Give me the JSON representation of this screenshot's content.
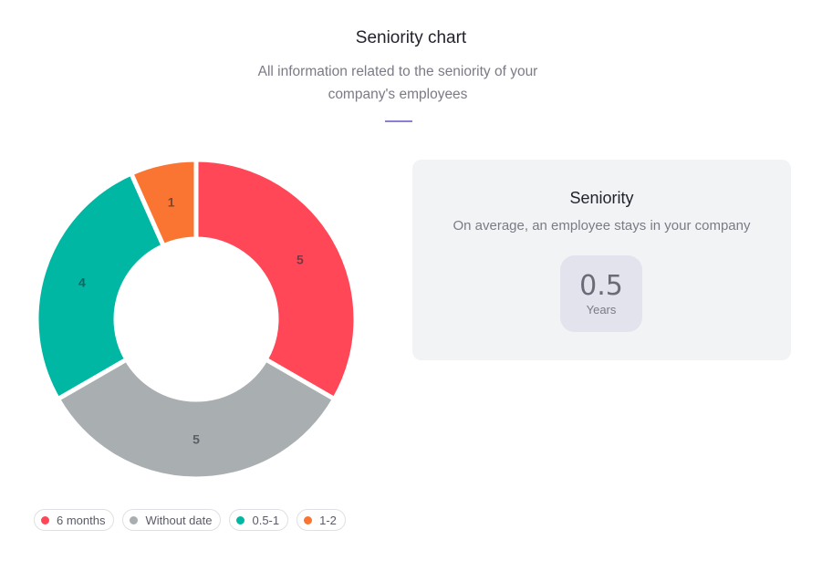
{
  "header": {
    "title": "Seniority chart",
    "subtitle": "All information related to the seniority of your company's employees"
  },
  "chart_data": {
    "type": "pie",
    "variant": "donut",
    "series": [
      {
        "name": "6 months",
        "value": 5,
        "color": "#ff4757"
      },
      {
        "name": "Without date",
        "value": 5,
        "color": "#a9aeb1"
      },
      {
        "name": "0.5-1",
        "value": 4,
        "color": "#00b7a3"
      },
      {
        "name": "1-2",
        "value": 1,
        "color": "#fa7532"
      }
    ],
    "legend": "bottom-left"
  },
  "card": {
    "title": "Seniority",
    "subtitle": "On average, an employee stays in your company",
    "value": "0.5",
    "unit": "Years"
  }
}
